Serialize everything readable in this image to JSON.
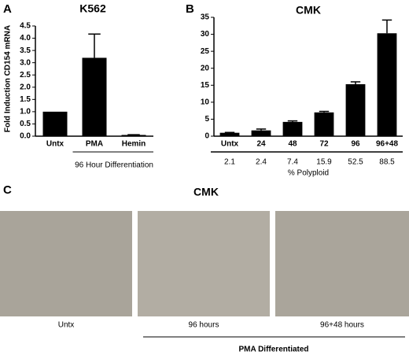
{
  "chart_data": [
    {
      "type": "bar",
      "panel": "A",
      "title": "K562",
      "ylabel": "Fold Induction CD154 mRNA",
      "categories": [
        "Untx",
        "PMA",
        "Hemin"
      ],
      "values": [
        1.0,
        3.2,
        0.05
      ],
      "errors": [
        null,
        0.97,
        0.01
      ],
      "color": "#000000",
      "ylim": [
        0,
        4.5
      ],
      "yticks": [
        {
          "value": 0,
          "label": "0.0"
        },
        0.5,
        {
          "value": 1,
          "label": "1.0"
        },
        1.5,
        {
          "value": 2,
          "label": "2.0"
        },
        2.5,
        {
          "value": 3,
          "label": "3.0"
        },
        3.5,
        {
          "value": 4,
          "label": "4.0"
        },
        4.5
      ],
      "group_label": "96 Hour Differentiation"
    },
    {
      "type": "bar",
      "panel": "B",
      "title": "CMK",
      "categories": [
        "Untx",
        "24",
        "48",
        "72",
        "96",
        "96+48"
      ],
      "values": [
        1.0,
        1.7,
        4.2,
        7.0,
        15.3,
        30.3
      ],
      "errors": [
        0.1,
        0.4,
        0.3,
        0.3,
        0.7,
        3.9
      ],
      "color": "#000000",
      "ylim": [
        0,
        35
      ],
      "yticks": [
        0,
        5,
        10,
        15,
        20,
        25,
        30,
        35
      ],
      "row_values": [
        2.1,
        2.4,
        7.4,
        15.9,
        52.5,
        88.5
      ],
      "row_label": "% Polyploid"
    }
  ],
  "panel_c": {
    "panel": "C",
    "title": "CMK",
    "images": [
      "Untx",
      "96 hours",
      "96+48 hours"
    ],
    "group_label": "PMA Differentiated"
  }
}
